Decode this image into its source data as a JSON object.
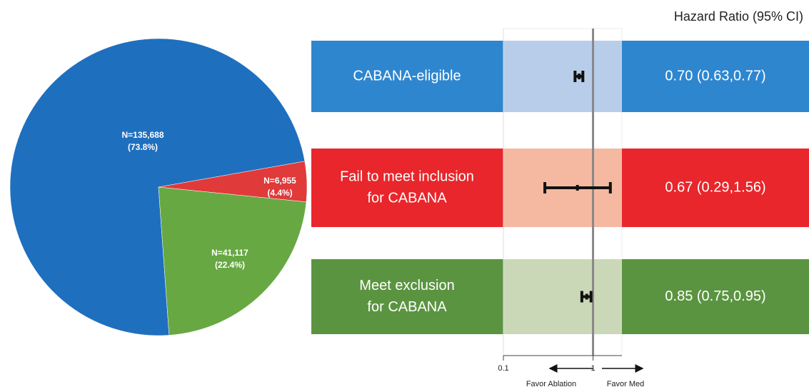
{
  "chart_data": [
    {
      "type": "pie",
      "values": [
        73.8,
        4.4,
        22.4
      ],
      "value_labels": [
        "(73.8%)",
        "(4.4%)",
        "(22.4%)"
      ],
      "count_labels": [
        "N=135,688",
        "N=6,955",
        "N=41,117"
      ],
      "colors": [
        "#1f6fbf",
        "#e03a3a",
        "#67a843"
      ]
    },
    {
      "type": "forest",
      "title": "Hazard Ratio (95% CI)",
      "categories": [
        [
          "CABANA-eligible"
        ],
        [
          "Fail to meet inclusion",
          "for CABANA"
        ],
        [
          "Meet exclusion",
          "for CABANA"
        ]
      ],
      "values": [
        0.7,
        0.67,
        0.85
      ],
      "lower": [
        0.63,
        0.29,
        0.75
      ],
      "upper": [
        0.77,
        1.56,
        0.95
      ],
      "value_labels": [
        "0.70 (0.63,0.77)",
        "0.67 (0.29,1.56)",
        "0.85 (0.75,0.95)"
      ],
      "colors": [
        "#2e86cf",
        "#e8262b",
        "#5b9441"
      ],
      "band_colors": [
        "#b8cde9",
        "#f5b9a2",
        "#cbd8b8"
      ],
      "log_x": true,
      "xlim": [
        0.1,
        2.1
      ],
      "xticks": [
        0.1,
        1
      ],
      "annotations": [
        "Favor Ablation",
        "Favor Med"
      ]
    }
  ]
}
